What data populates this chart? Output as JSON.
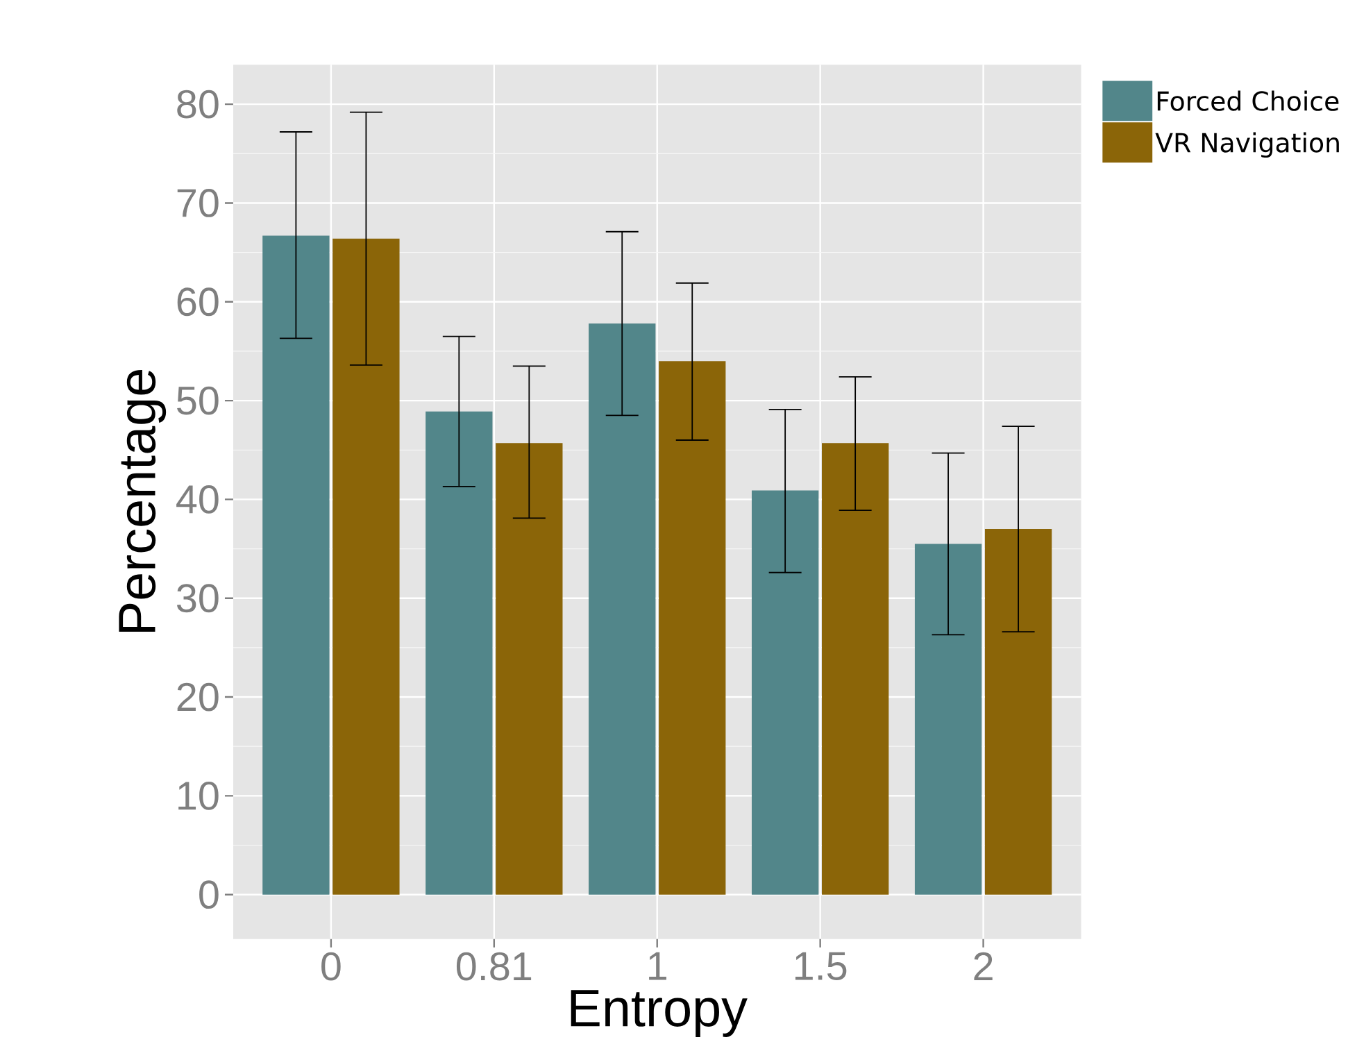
{
  "chart_data": {
    "type": "bar",
    "xlabel": "Entropy",
    "ylabel": "Percentage",
    "categories": [
      "0",
      "0.81",
      "1",
      "1.5",
      "2"
    ],
    "series": [
      {
        "name": "Forced Choice",
        "color": "#52868a",
        "values": [
          66.7,
          48.9,
          57.8,
          40.9,
          35.5
        ],
        "errors": [
          [
            56.3,
            77.2
          ],
          [
            41.3,
            56.5
          ],
          [
            48.5,
            67.1
          ],
          [
            32.6,
            49.1
          ],
          [
            26.3,
            44.7
          ]
        ]
      },
      {
        "name": "VR Navigation",
        "color": "#8b6508",
        "values": [
          66.4,
          45.7,
          54.0,
          45.7,
          37.0
        ],
        "errors": [
          [
            53.6,
            79.2
          ],
          [
            38.1,
            53.5
          ],
          [
            46.0,
            61.9
          ],
          [
            38.9,
            52.4
          ],
          [
            26.6,
            47.4
          ]
        ]
      }
    ],
    "ylim": [
      -4.5,
      84
    ],
    "yticks": [
      0,
      10,
      20,
      30,
      40,
      50,
      60,
      70,
      80
    ],
    "grid": true,
    "legend": "top right"
  }
}
